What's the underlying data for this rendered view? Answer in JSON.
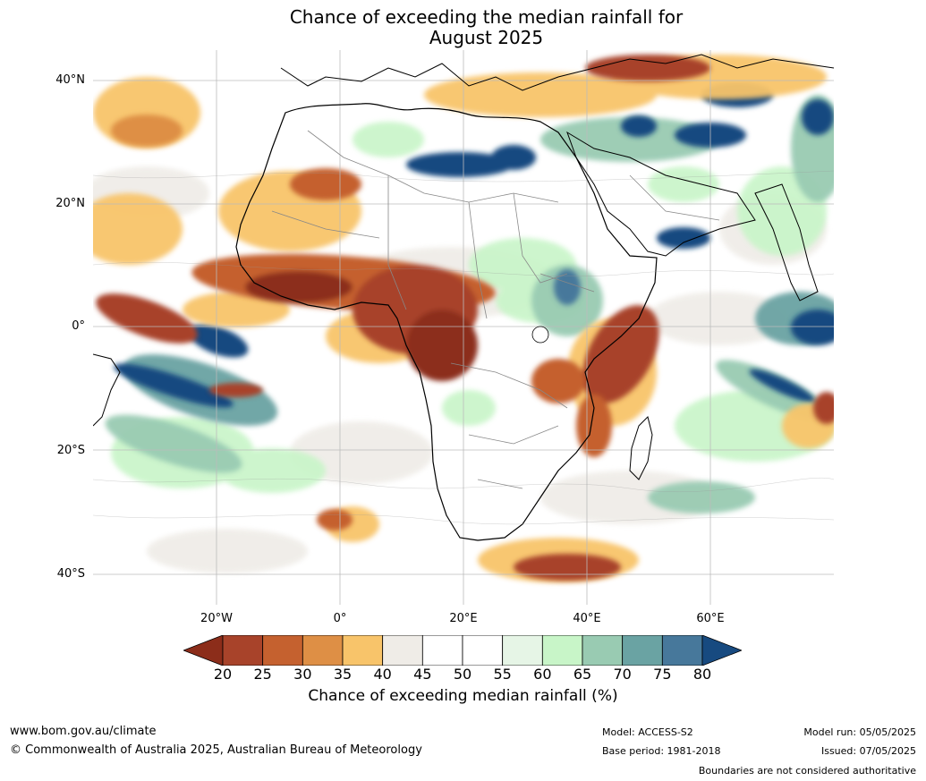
{
  "title_line1": "Chance of exceeding the median rainfall for",
  "title_line2": "August 2025",
  "lat_ticks": [
    "40°N",
    "20°N",
    "0°",
    "20°S",
    "40°S"
  ],
  "lon_ticks": [
    "20°W",
    "0°",
    "20°E",
    "40°E",
    "60°E"
  ],
  "colorbar": {
    "ticks": [
      "20",
      "25",
      "30",
      "35",
      "40",
      "45",
      "50",
      "55",
      "60",
      "65",
      "70",
      "75",
      "80"
    ],
    "colors": [
      "#8c2d1a",
      "#a8432a",
      "#c5612f",
      "#de8f45",
      "#f8c46a",
      "#efece7",
      "#ffffff",
      "#ffffff",
      "#e6f5e6",
      "#c8f5c8",
      "#99cbb2",
      "#6aa3a3",
      "#47789b",
      "#174a80"
    ],
    "label": "Chance of exceeding median rainfall (%)"
  },
  "footer": {
    "website": "www.bom.gov.au/climate",
    "copyright": "© Commonwealth of Australia 2025, Australian Bureau of Meteorology",
    "model": "Model: ACCESS-S2",
    "base_period": "Base period: 1981-2018",
    "model_run": "Model run: 05/05/2025",
    "issued": "Issued: 07/05/2025",
    "disclaimer": "Boundaries are not considered authoritative"
  }
}
